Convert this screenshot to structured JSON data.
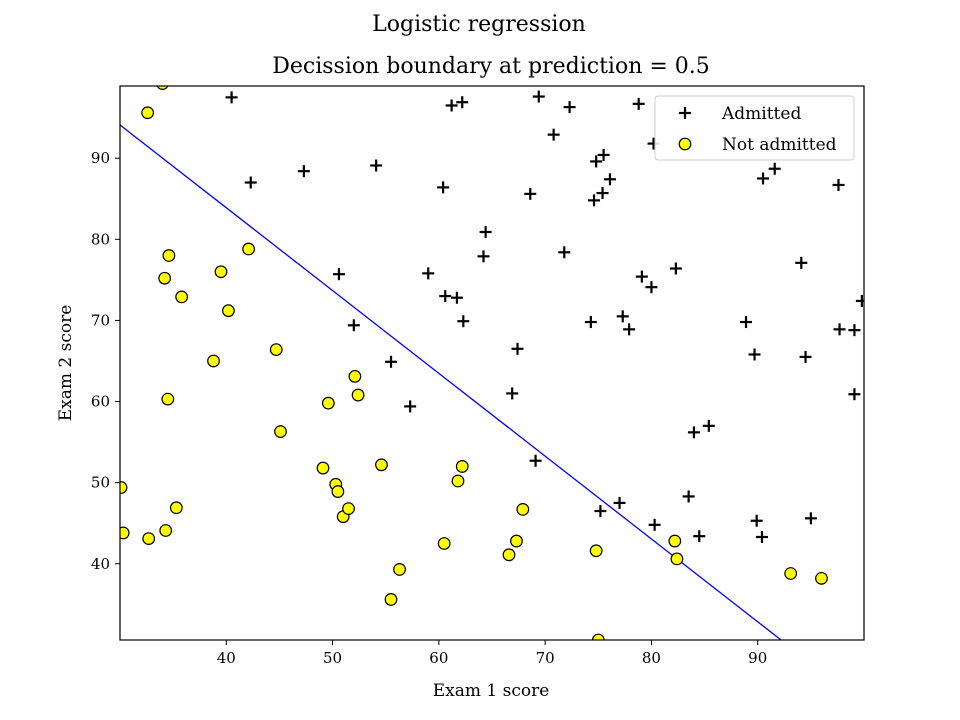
{
  "chart_data": {
    "type": "scatter",
    "suptitle": "Logistic regression",
    "title": "Decission boundary at prediction = 0.5",
    "xlabel": "Exam 1 score",
    "ylabel": "Exam 2 score",
    "xlim": [
      30,
      100
    ],
    "ylim": [
      30.6,
      98.9
    ],
    "xticks": [
      40,
      50,
      60,
      70,
      80,
      90
    ],
    "yticks": [
      40,
      50,
      60,
      70,
      80,
      90
    ],
    "grid": false,
    "legend_position": "top-right",
    "colors": {
      "admitted": "#000000",
      "not_admitted_fill": "#ffff00",
      "not_admitted_edge": "#000000",
      "boundary": "#0000ff"
    },
    "series": [
      {
        "name": "Admitted",
        "marker": "plus",
        "points": [
          [
            40.5,
            97.5
          ],
          [
            42.3,
            87.0
          ],
          [
            47.3,
            88.4
          ],
          [
            54.1,
            89.1
          ],
          [
            50.6,
            75.7
          ],
          [
            52.0,
            69.4
          ],
          [
            55.5,
            64.9
          ],
          [
            57.3,
            59.4
          ],
          [
            59.0,
            75.8
          ],
          [
            60.4,
            86.4
          ],
          [
            60.6,
            73.0
          ],
          [
            61.2,
            96.5
          ],
          [
            61.7,
            72.8
          ],
          [
            62.2,
            96.9
          ],
          [
            62.3,
            69.9
          ],
          [
            64.2,
            77.9
          ],
          [
            64.4,
            80.9
          ],
          [
            66.9,
            61.0
          ],
          [
            67.4,
            66.5
          ],
          [
            68.6,
            85.6
          ],
          [
            69.1,
            52.7
          ],
          [
            69.4,
            97.6
          ],
          [
            70.8,
            92.9
          ],
          [
            71.8,
            78.4
          ],
          [
            72.3,
            96.3
          ],
          [
            74.3,
            69.8
          ],
          [
            74.6,
            84.8
          ],
          [
            74.8,
            89.6
          ],
          [
            75.2,
            46.5
          ],
          [
            75.4,
            85.7
          ],
          [
            75.5,
            90.4
          ],
          [
            76.1,
            87.4
          ],
          [
            77.0,
            47.5
          ],
          [
            77.3,
            70.5
          ],
          [
            77.9,
            68.9
          ],
          [
            78.8,
            96.7
          ],
          [
            79.1,
            75.4
          ],
          [
            80.0,
            74.1
          ],
          [
            80.3,
            44.8
          ],
          [
            80.2,
            91.8
          ],
          [
            82.3,
            76.4
          ],
          [
            83.5,
            48.3
          ],
          [
            84.0,
            56.2
          ],
          [
            84.5,
            43.4
          ],
          [
            85.4,
            57.0
          ],
          [
            88.9,
            69.8
          ],
          [
            89.7,
            65.8
          ],
          [
            89.9,
            45.3
          ],
          [
            90.4,
            43.3
          ],
          [
            90.5,
            87.5
          ],
          [
            91.6,
            88.7
          ],
          [
            94.1,
            77.1
          ],
          [
            94.5,
            65.5
          ],
          [
            95.0,
            45.6
          ],
          [
            97.6,
            86.7
          ],
          [
            97.7,
            68.9
          ],
          [
            99.1,
            68.8
          ],
          [
            99.1,
            60.9
          ],
          [
            99.8,
            72.4
          ]
        ]
      },
      {
        "name": "Not admitted",
        "marker": "circle",
        "points": [
          [
            30.1,
            49.4
          ],
          [
            30.3,
            43.8
          ],
          [
            32.6,
            95.6
          ],
          [
            32.7,
            43.1
          ],
          [
            34.0,
            99.2
          ],
          [
            34.2,
            75.2
          ],
          [
            34.3,
            44.1
          ],
          [
            34.5,
            60.3
          ],
          [
            34.6,
            78.0
          ],
          [
            35.3,
            46.9
          ],
          [
            35.8,
            72.9
          ],
          [
            38.8,
            65.0
          ],
          [
            39.5,
            76.0
          ],
          [
            40.2,
            71.2
          ],
          [
            42.1,
            78.8
          ],
          [
            44.7,
            66.4
          ],
          [
            45.1,
            56.3
          ],
          [
            49.1,
            51.8
          ],
          [
            49.6,
            59.8
          ],
          [
            50.3,
            49.8
          ],
          [
            50.5,
            48.9
          ],
          [
            51.0,
            45.8
          ],
          [
            51.5,
            46.8
          ],
          [
            52.1,
            63.1
          ],
          [
            52.4,
            60.8
          ],
          [
            54.6,
            52.2
          ],
          [
            55.5,
            35.6
          ],
          [
            56.3,
            39.3
          ],
          [
            60.5,
            42.5
          ],
          [
            61.8,
            50.2
          ],
          [
            62.2,
            52.0
          ],
          [
            66.6,
            41.1
          ],
          [
            67.3,
            42.8
          ],
          [
            67.9,
            46.7
          ],
          [
            74.8,
            41.6
          ],
          [
            75.0,
            30.6
          ],
          [
            82.2,
            42.8
          ],
          [
            82.4,
            40.6
          ],
          [
            93.1,
            38.8
          ],
          [
            96.0,
            38.2
          ]
        ]
      }
    ],
    "boundary_line": {
      "x": [
        30,
        92.2
      ],
      "y": [
        94.1,
        30.6
      ]
    }
  }
}
